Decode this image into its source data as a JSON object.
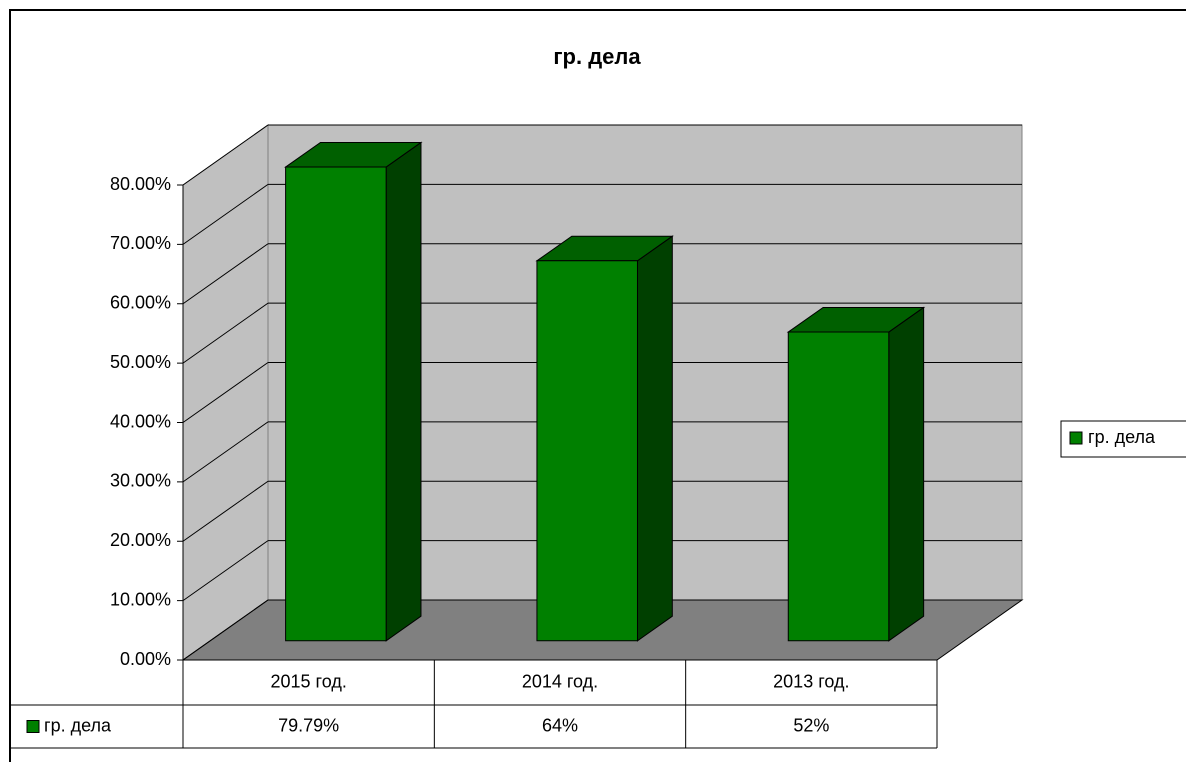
{
  "chart_data": {
    "type": "bar3d",
    "title": "гр. дела",
    "categories": [
      "2015 год.",
      "2014 год.",
      "2013 год."
    ],
    "series": [
      {
        "name": "гр. дела",
        "color": "#008000",
        "values": [
          79.79,
          64,
          52
        ],
        "value_labels": [
          "79.79%",
          "64%",
          "52%"
        ]
      }
    ],
    "ylim": [
      0,
      80
    ],
    "yticks": [
      {
        "value": 0,
        "label": "0.00%"
      },
      {
        "value": 10,
        "label": "10.00%"
      },
      {
        "value": 20,
        "label": "20.00%"
      },
      {
        "value": 30,
        "label": "30.00%"
      },
      {
        "value": 40,
        "label": "40.00%"
      },
      {
        "value": 50,
        "label": "50.00%"
      },
      {
        "value": 60,
        "label": "60.00%"
      },
      {
        "value": 70,
        "label": "70.00%"
      },
      {
        "value": 80,
        "label": "80.00%"
      }
    ],
    "grid": true,
    "legend": "right"
  }
}
